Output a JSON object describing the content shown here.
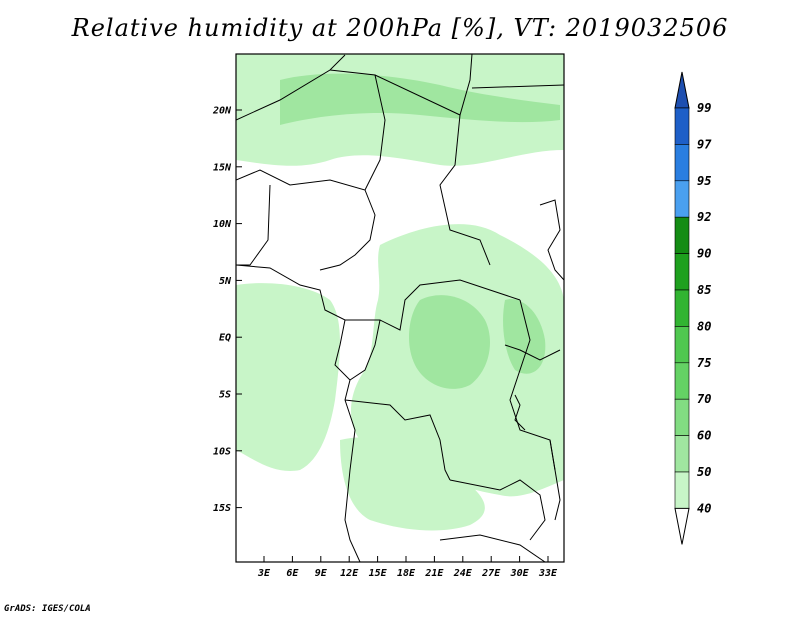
{
  "title": "Relative humidity at 200hPa [%], VT: 2019032506",
  "footer": "GrADS: IGES/COLA",
  "map": {
    "lat_labels": [
      "20N",
      "15N",
      "10N",
      "5N",
      "EQ",
      "5S",
      "10S",
      "15S"
    ],
    "lon_labels": [
      "3E",
      "6E",
      "9E",
      "12E",
      "15E",
      "18E",
      "21E",
      "24E",
      "27E",
      "30E",
      "33E"
    ]
  },
  "colorbar": {
    "labels": [
      "99",
      "97",
      "95",
      "92",
      "90",
      "85",
      "80",
      "75",
      "70",
      "60",
      "50",
      "40"
    ],
    "colors": [
      "#1e5fc8",
      "#2a7ee0",
      "#4aa0f0",
      "#148c14",
      "#1ea01e",
      "#32b432",
      "#50c850",
      "#64d264",
      "#82dc82",
      "#a0e6a0",
      "#c8f5c8",
      "#e8fde8"
    ],
    "top_cap_color": "#1e4fb0",
    "bottom_cap_color": "#ffffff"
  },
  "colors": {
    "land_white": "#ffffff",
    "humid_light": "#c8f5c8",
    "humid_mid": "#a0e6a0",
    "border": "#000000"
  }
}
